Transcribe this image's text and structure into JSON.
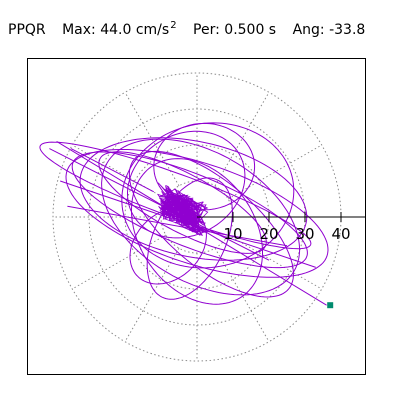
{
  "header": {
    "station": "PPQR",
    "max_label": "Max:",
    "max_value": "44.0",
    "max_unit": "cm/s",
    "max_unit_exp": "2",
    "per_label": "Per:",
    "per_value": "0.500 s",
    "ang_label": "Ang:",
    "ang_value": "-33.8"
  },
  "colors": {
    "trace": "#9000d0",
    "grid": "#8a8a8a",
    "axis": "#000000",
    "end_marker": "#008b6e"
  },
  "chart_data": {
    "type": "polar-particle-motion",
    "title": "",
    "xlabel": "",
    "ylabel": "",
    "radial_ticks": [
      10,
      20,
      30,
      40
    ],
    "radial_tick_labels": [
      "10",
      "20",
      "30",
      "40"
    ],
    "rings": [
      10,
      20,
      30,
      40
    ],
    "spokes_deg": [
      0,
      30,
      60,
      90,
      120,
      150,
      180,
      210,
      240,
      270,
      300,
      330
    ],
    "grid": true,
    "end_point": [
      37.0,
      -24.5
    ],
    "orbits": [
      {
        "a": 35,
        "b": 10,
        "rot": -22,
        "cx": -2,
        "cy": 2
      },
      {
        "a": 38,
        "b": 14,
        "rot": -18,
        "cx": 0,
        "cy": 1
      },
      {
        "a": 30,
        "b": 18,
        "rot": -30,
        "cx": 1,
        "cy": 0
      },
      {
        "a": 24,
        "b": 20,
        "rot": 10,
        "cx": 3,
        "cy": 6
      },
      {
        "a": 22,
        "b": 16,
        "rot": -55,
        "cx": 0,
        "cy": -4
      },
      {
        "a": 17,
        "b": 14,
        "rot": 30,
        "cx": -3,
        "cy": 9
      },
      {
        "a": 26,
        "b": 8,
        "rot": -28,
        "cx": -4,
        "cy": 4
      },
      {
        "a": 40,
        "b": 6,
        "rot": -20,
        "cx": -6,
        "cy": 6
      },
      {
        "a": 18,
        "b": 10,
        "rot": 65,
        "cx": -2,
        "cy": -6
      },
      {
        "a": 14,
        "b": 12,
        "rot": 0,
        "cx": 2,
        "cy": 14
      },
      {
        "a": 28,
        "b": 12,
        "rot": -40,
        "cx": 4,
        "cy": -2
      },
      {
        "a": 12,
        "b": 9,
        "rot": 45,
        "cx": -8,
        "cy": -8
      },
      {
        "a": 32,
        "b": 16,
        "rot": -12,
        "cx": -1,
        "cy": 5
      }
    ],
    "segments": [
      [
        [
          -39,
          21
        ],
        [
          36,
          -24.5
        ]
      ],
      [
        [
          -41,
          19
        ],
        [
          20,
          -12
        ]
      ],
      [
        [
          -38,
          10
        ],
        [
          33,
          -14
        ]
      ],
      [
        [
          -36,
          3
        ],
        [
          25,
          -8
        ]
      ],
      [
        [
          -35,
          19
        ],
        [
          -12,
          7
        ]
      ]
    ],
    "core_cloud": {
      "center": [
        -4,
        2
      ],
      "spread_x": 6,
      "spread_y": 5,
      "count": 260
    }
  }
}
